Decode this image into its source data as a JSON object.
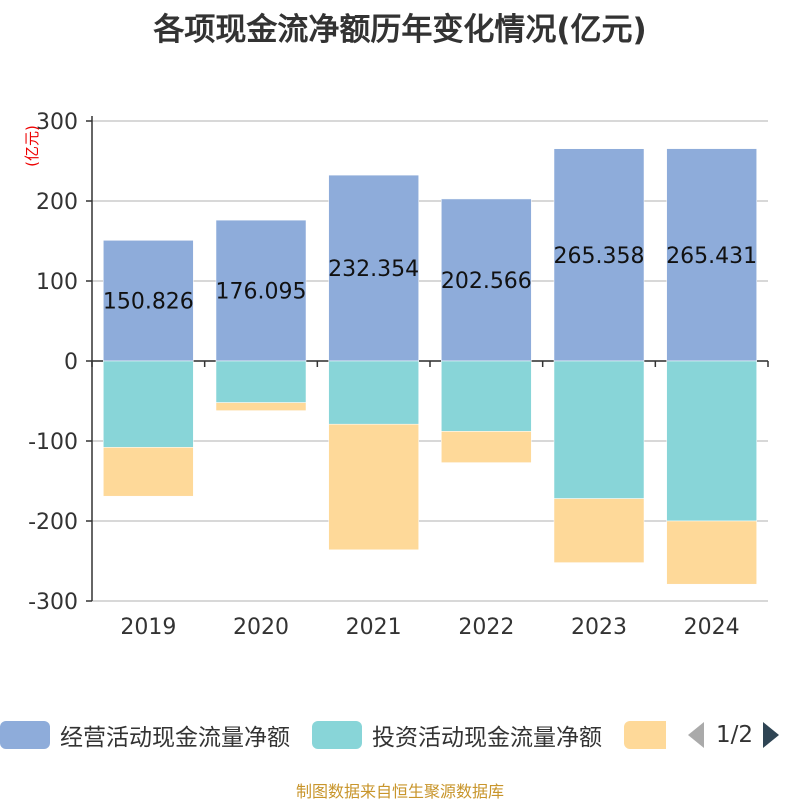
{
  "title": "各项现金流净额历年变化情况(亿元)",
  "footer": "制图数据来自恒生聚源数据库",
  "legend": {
    "items": [
      {
        "label": "经营活动现金流量净额",
        "color": "#8eacda"
      },
      {
        "label": "投资活动现金流量净额",
        "color": "#88d5d8"
      },
      {
        "label": "",
        "color": "#fed999"
      }
    ],
    "page": "1/2",
    "prev_icon": "triangle-left-icon",
    "next_icon": "triangle-right-icon"
  },
  "chart_data": {
    "type": "bar",
    "stacked": true,
    "categories": [
      "2019",
      "2020",
      "2021",
      "2022",
      "2023",
      "2024"
    ],
    "ylabel": "(亿元)",
    "ylim": [
      -300,
      300
    ],
    "yticks": [
      300,
      200,
      100,
      0,
      -100,
      -200,
      -300
    ],
    "grid": true,
    "legend_position": "bottom",
    "series": [
      {
        "name": "经营活动现金流量净额",
        "color": "#8eacda",
        "values": [
          150.826,
          176.095,
          232.354,
          202.566,
          265.358,
          265.431
        ],
        "labels": [
          "150.826",
          "176.095",
          "232.354",
          "202.566",
          "265.358",
          "265.431"
        ]
      },
      {
        "name": "投资活动现金流量净额",
        "color": "#88d5d8",
        "values": [
          -108,
          -52,
          -79,
          -88,
          -172,
          -200
        ]
      },
      {
        "color": "#fed999",
        "values": [
          -61,
          -10,
          -157,
          -39,
          -80,
          -79
        ]
      }
    ]
  }
}
